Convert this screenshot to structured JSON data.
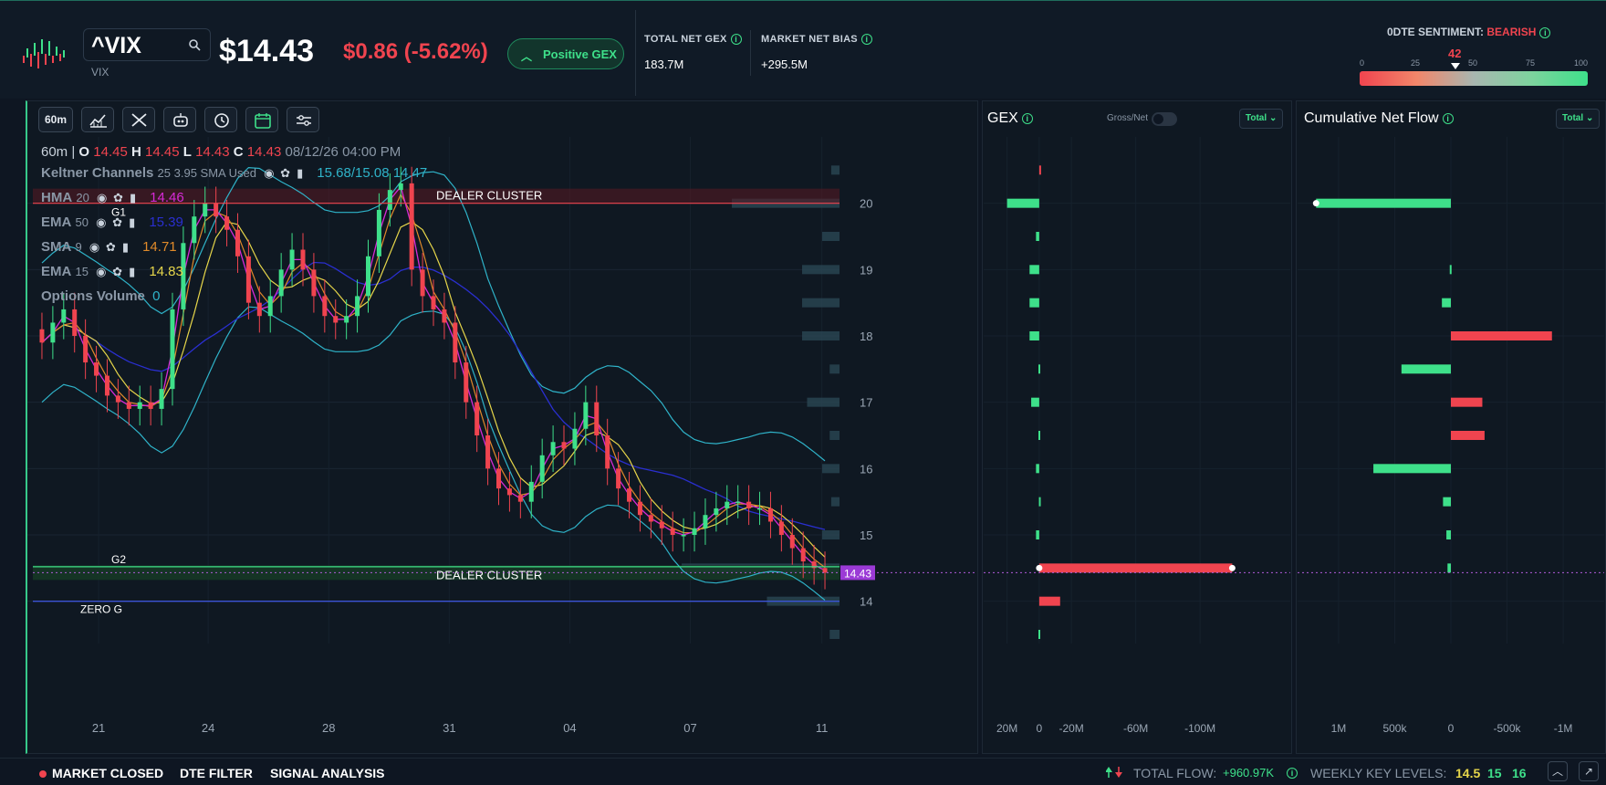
{
  "header": {
    "ticker": "^VIX",
    "ticker_sub": "VIX",
    "price": "$14.43",
    "change": "$0.86 (-5.62%)",
    "gex_pill": "Positive GEX",
    "total_net_gex_label": "TOTAL NET GEX",
    "total_net_gex_value": "183.7M",
    "market_net_bias_label": "MARKET NET BIAS",
    "market_net_bias_value": "+295.5M",
    "sentiment_label": "0DTE SENTIMENT:",
    "sentiment_state": "BEARISH",
    "sentiment_value": "42",
    "sentiment_level": 42,
    "sentiment_ticks": [
      "0",
      "25",
      "50",
      "75",
      "100"
    ]
  },
  "toolbar": {
    "interval": "60m",
    "icons": [
      "chart-type-icon",
      "drawing-tools-icon",
      "indicators-bot-icon",
      "replay-clock-icon",
      "calendar-icon",
      "settings-sliders-icon"
    ]
  },
  "legend": {
    "ohlc_interval": "60m |",
    "o_label": "O",
    "o_value": "14.45",
    "h_label": "H",
    "h_value": "14.45",
    "l_label": "L",
    "l_value": "14.43",
    "c_label": "C",
    "c_value": "14.43",
    "datetime": "08/12/26 04:00 PM",
    "keltner_label": "Keltner Channels",
    "keltner_params": "25 3.95 SMA Used",
    "keltner_values": "15.68/15.08 14.47",
    "hma_label": "HMA",
    "hma_params": "20",
    "hma_value": "14.46",
    "ema50_label": "EMA",
    "ema50_params": "50",
    "ema50_value": "15.39",
    "sma9_label": "SMA",
    "sma9_params": "9",
    "sma9_value": "14.71",
    "ema15_label": "EMA",
    "ema15_params": "15",
    "ema15_value": "14.83",
    "optvol_label": "Options Volume",
    "optvol_value": "0"
  },
  "chart_annotations": {
    "dealer_cluster_top": "DEALER CLUSTER",
    "dealer_cluster_bottom": "DEALER CLUSTER",
    "g1": "G1",
    "g2": "G2",
    "zero_g": "ZERO G",
    "last_price_tag": "14.43"
  },
  "colors": {
    "bg": "#0e1622",
    "panel": "#0f1822",
    "up": "#3ee08a",
    "down": "#f0444f",
    "keltner": "#2fb3c9",
    "hma": "#d62ad6",
    "ema50": "#2a2fd0",
    "sma9": "#e08a2a",
    "ema15": "#e6d64a",
    "price_tag": "#9b3ad6"
  },
  "gex_panel": {
    "title": "GEX",
    "gross_net_label": "Gross/Net",
    "dropdown": "Total",
    "x_ticks": [
      "20M",
      "0",
      "-20M",
      "-60M",
      "-100M"
    ]
  },
  "flow_panel": {
    "title": "Cumulative Net Flow",
    "dropdown": "Total",
    "x_ticks": [
      "1M",
      "500k",
      "0",
      "-500k",
      "-1M"
    ]
  },
  "chart_data": {
    "type": "candlestick",
    "title": "",
    "x_ticks": [
      "21",
      "24",
      "28",
      "31",
      "04",
      "07",
      "11"
    ],
    "y_ticks": [
      20,
      19,
      18,
      17,
      16,
      15,
      14
    ],
    "ylim": [
      13.5,
      21
    ],
    "levels": {
      "dealer_cluster_top": 20,
      "dealer_cluster_bottom": 14.5,
      "g2": 14.52,
      "zero_g": 14.0,
      "last_price": 14.43
    },
    "close_series": [
      17.9,
      18.2,
      18.4,
      18.0,
      17.6,
      17.4,
      17.1,
      17.0,
      16.9,
      17.0,
      16.9,
      17.2,
      18.4,
      19.4,
      19.8,
      20.0,
      19.8,
      19.6,
      19.2,
      18.5,
      18.3,
      18.6,
      19.0,
      19.3,
      19.0,
      18.6,
      18.3,
      18.2,
      18.3,
      18.6,
      19.2,
      19.9,
      20.2,
      20.3,
      19.0,
      18.6,
      18.4,
      18.2,
      17.6,
      17.0,
      16.5,
      16.0,
      15.7,
      15.6,
      15.5,
      15.8,
      16.2,
      16.4,
      16.3,
      16.6,
      17.0,
      16.5,
      16.0,
      15.7,
      15.5,
      15.3,
      15.2,
      15.1,
      15.0,
      15.0,
      15.1,
      15.3,
      15.4,
      15.5,
      15.5,
      15.4,
      15.4,
      15.2,
      15.0,
      14.8,
      14.6,
      14.5,
      14.43
    ],
    "gex_strikes": [
      {
        "strike": 20.5,
        "value": -0.2
      },
      {
        "strike": 20,
        "value": 20
      },
      {
        "strike": 19.5,
        "value": 2
      },
      {
        "strike": 19,
        "value": 6
      },
      {
        "strike": 18.5,
        "value": 6
      },
      {
        "strike": 18,
        "value": 6
      },
      {
        "strike": 17.5,
        "value": 0.5
      },
      {
        "strike": 17,
        "value": 5
      },
      {
        "strike": 16.5,
        "value": 0.5
      },
      {
        "strike": 16,
        "value": 2
      },
      {
        "strike": 15.5,
        "value": 0.2
      },
      {
        "strike": 15,
        "value": 2
      },
      {
        "strike": 14.5,
        "value": -120
      },
      {
        "strike": 14,
        "value": -13
      },
      {
        "strike": 13.5,
        "value": 0.5
      }
    ],
    "flow_strikes": [
      {
        "strike": 20,
        "value": 1200000
      },
      {
        "strike": 19,
        "value": 10000
      },
      {
        "strike": 18.5,
        "value": 80000
      },
      {
        "strike": 18,
        "value": -900000
      },
      {
        "strike": 17.5,
        "value": 440000
      },
      {
        "strike": 17,
        "value": -280000
      },
      {
        "strike": 16.5,
        "value": -300000
      },
      {
        "strike": 16,
        "value": 690000
      },
      {
        "strike": 15.5,
        "value": 70000
      },
      {
        "strike": 15,
        "value": 40000
      },
      {
        "strike": 14.5,
        "value": 30000
      }
    ],
    "gex_xlim": [
      30,
      -130
    ],
    "flow_xlim": [
      1300000,
      -1300000
    ]
  },
  "bottombar": {
    "market_status": "MARKET CLOSED",
    "dte_filter": "DTE FILTER",
    "signal_analysis": "SIGNAL ANALYSIS",
    "total_flow_label": "TOTAL FLOW:",
    "total_flow_value": "+960.97K",
    "weekly_key_levels_label": "WEEKLY KEY LEVELS:",
    "kl1": "14.5",
    "kl2": "15",
    "kl3": "16"
  }
}
